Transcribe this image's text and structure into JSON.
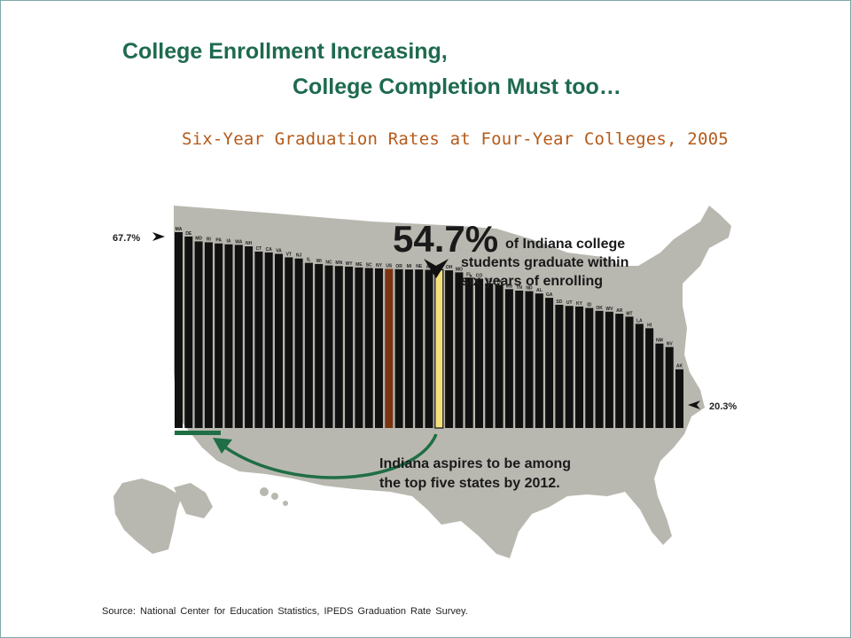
{
  "slide": {
    "title_line1": "College Enrollment Increasing,",
    "title_line2": "College Completion Must too…",
    "subtitle": "Six-Year Graduation Rates at Four-Year Colleges, 2005",
    "source": "Source:  National Center for Education Statistics, IPEDS Graduation Rate Survey."
  },
  "colors": {
    "title": "#1e6a4e",
    "subtitle": "#b55a1a",
    "map": "#b9b8b0",
    "bar": "#111111",
    "us_bar": "#7a3412",
    "indiana_bar": "#f4e07a",
    "arrow": "#1f6e45"
  },
  "chart_data": {
    "type": "bar",
    "categories": [
      "MA",
      "DE",
      "MD",
      "RI",
      "PA",
      "IA",
      "WA",
      "NH",
      "CT",
      "CA",
      "VA",
      "VT",
      "NJ",
      "IL",
      "WI",
      "NC",
      "MN",
      "WY",
      "ME",
      "SC",
      "NY",
      "US",
      "OR",
      "MI",
      "NE",
      "AZ",
      "IN",
      "OH",
      "MO",
      "FL",
      "CO",
      "KS",
      "TX",
      "MS",
      "TN",
      "ND",
      "AL",
      "GA",
      "SD",
      "UT",
      "KY",
      "ID",
      "OK",
      "WV",
      "AR",
      "MT",
      "LA",
      "HI",
      "NM",
      "NV",
      "AK"
    ],
    "values": [
      67.7,
      66.2,
      64.5,
      64.2,
      63.8,
      63.5,
      63.3,
      62.8,
      61.0,
      60.7,
      60.2,
      59.0,
      58.6,
      57.1,
      56.7,
      56.2,
      56.0,
      55.8,
      55.5,
      55.3,
      55.2,
      55.0,
      54.9,
      54.8,
      54.8,
      54.7,
      54.7,
      54.5,
      53.8,
      52.0,
      51.6,
      50.0,
      49.5,
      48.0,
      47.5,
      47.3,
      46.5,
      45.0,
      42.6,
      42.2,
      42.0,
      41.5,
      40.5,
      40.2,
      39.5,
      38.5,
      36.0,
      34.5,
      29.2,
      28.0,
      20.3
    ],
    "highlight": {
      "US": "us_bar",
      "IN": "indiana_bar"
    },
    "ylim": [
      0,
      70
    ],
    "annotations": {
      "max_label": "67.7%",
      "min_label": "20.3%",
      "indiana_value": "54.7%",
      "indiana_text_1": "of Indiana college",
      "indiana_text_2": "students graduate within",
      "indiana_text_3": "six years of enrolling",
      "goal_text_1": "Indiana aspires to be among",
      "goal_text_2": "the top five states by 2012."
    }
  }
}
